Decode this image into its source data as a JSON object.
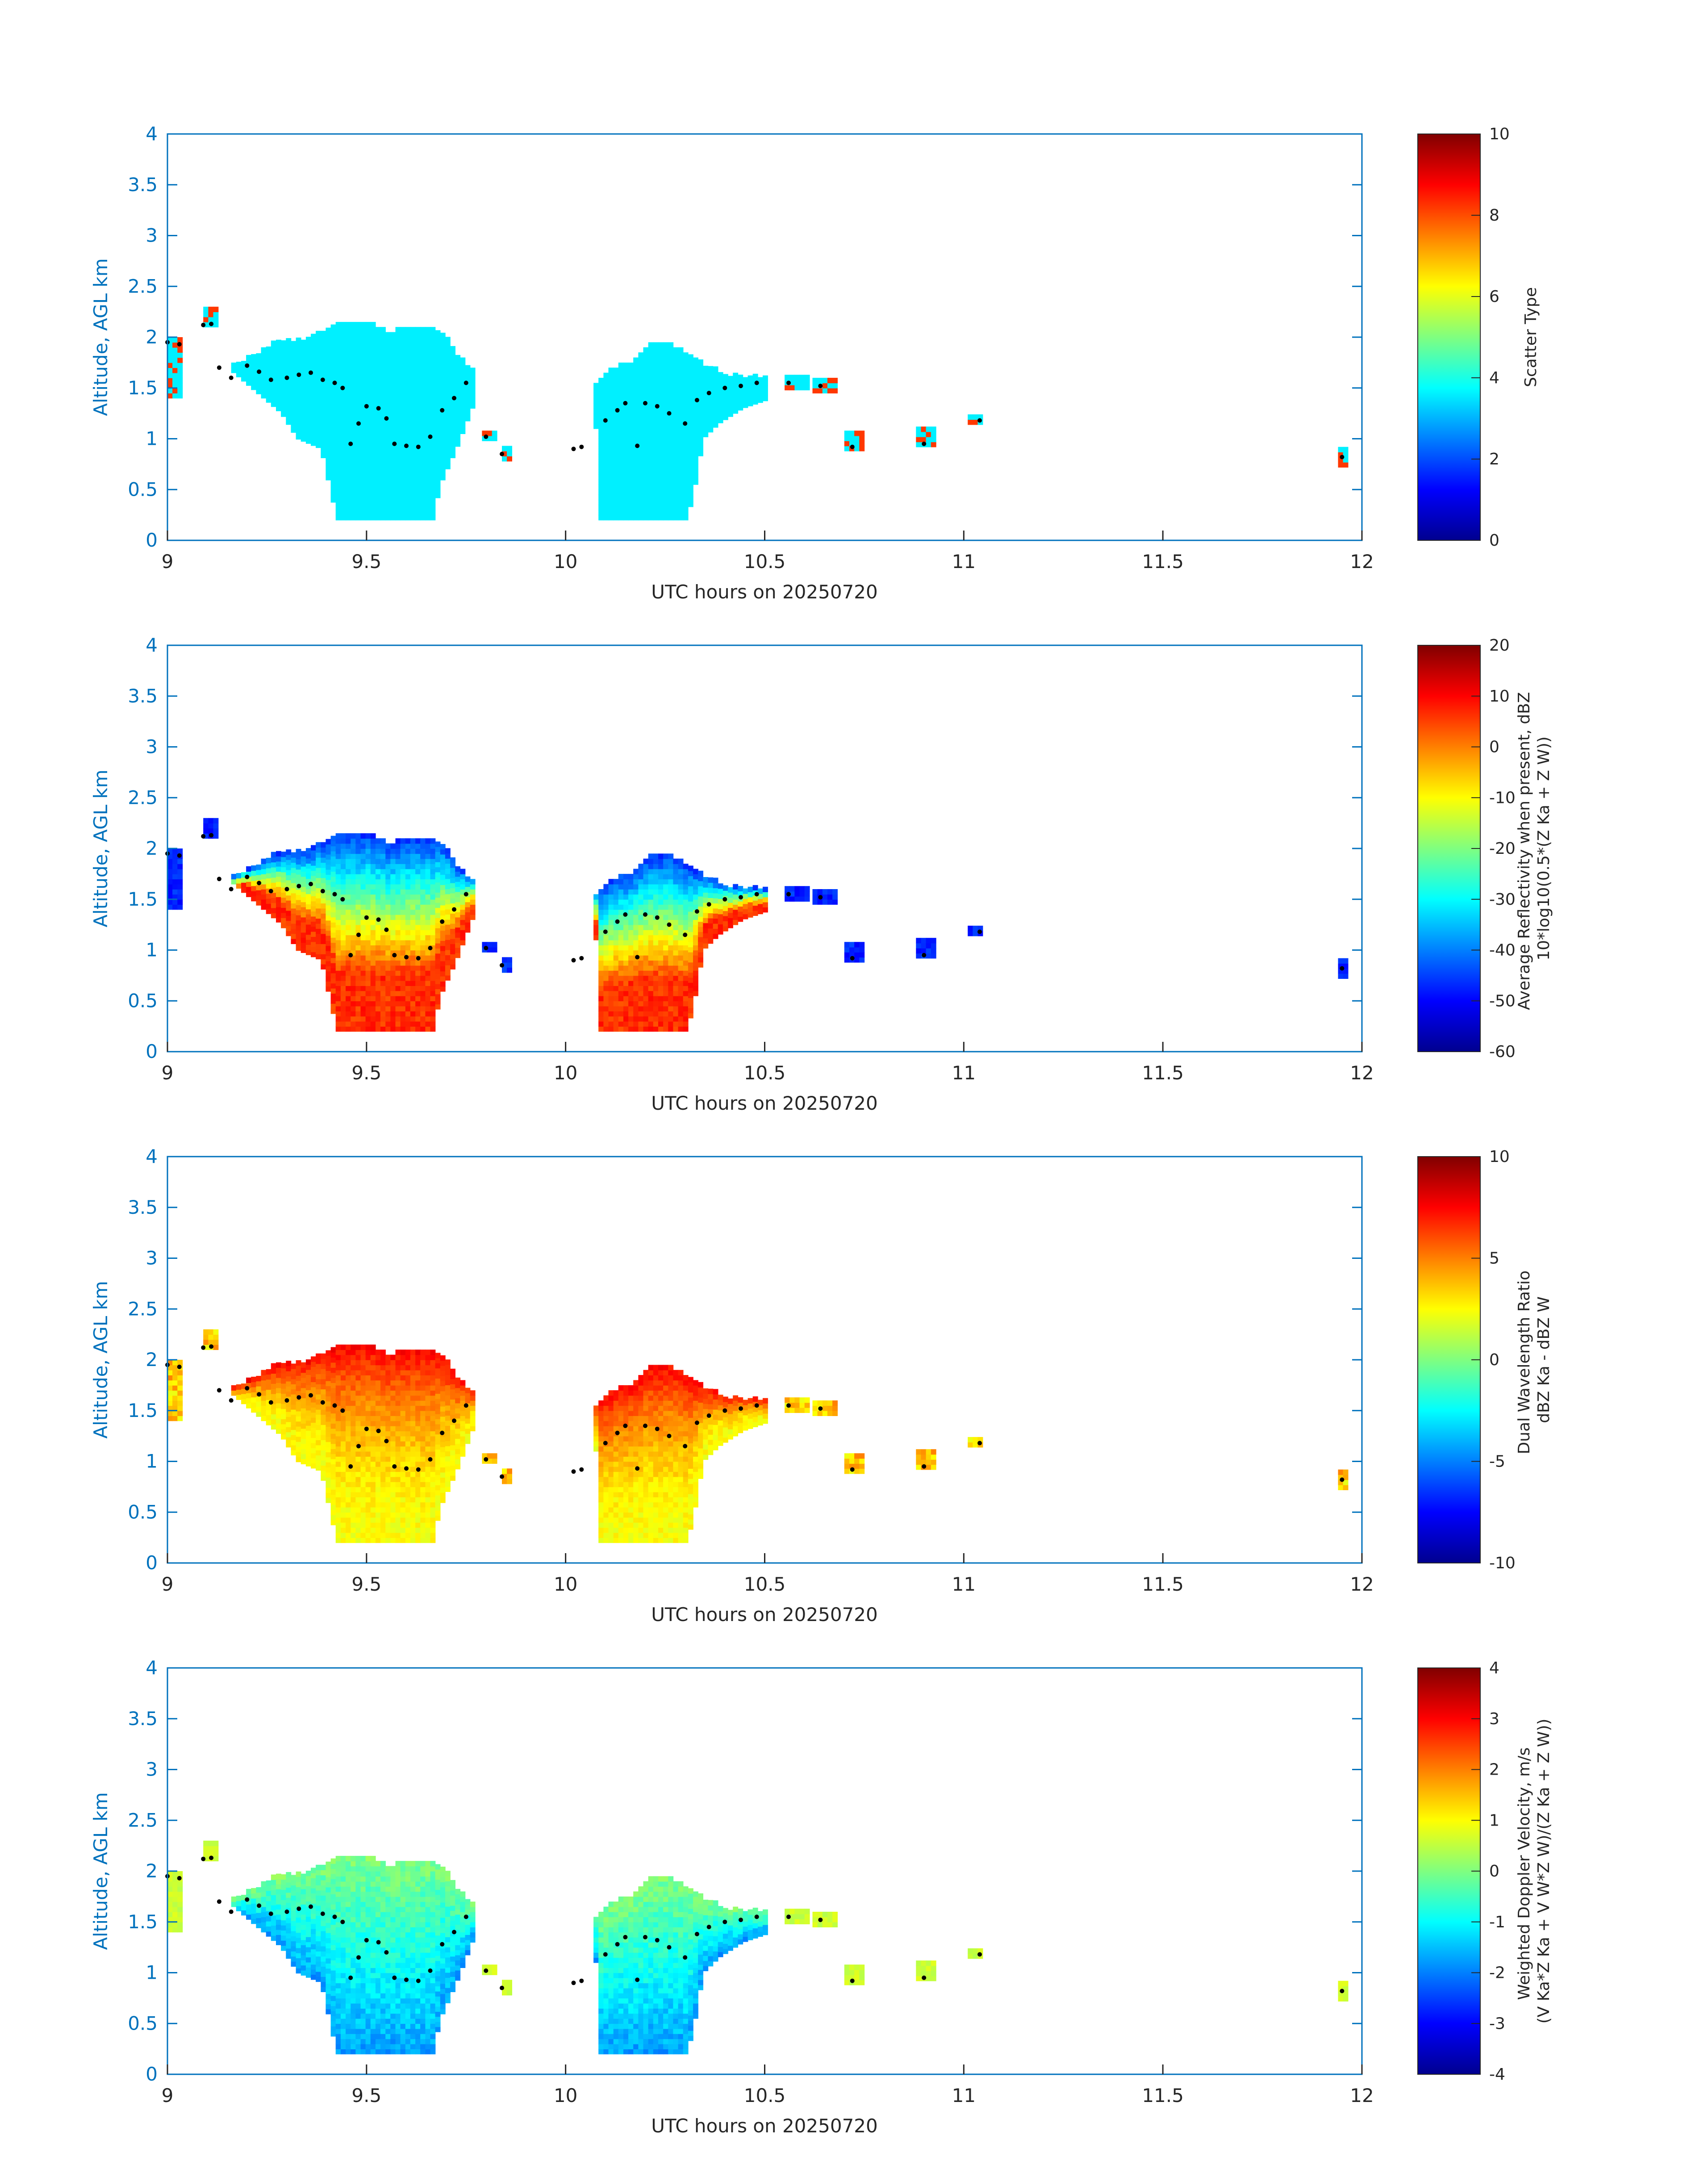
{
  "figure": {
    "common_xlabel": "UTC hours on 20250720",
    "common_ylabel": "Altitude, AGL km",
    "xlim": [
      9,
      12
    ],
    "ylim": [
      0,
      4
    ],
    "x_ticks": [
      "9",
      "9.5",
      "10",
      "10.5",
      "11",
      "11.5",
      "12"
    ],
    "y_ticks": [
      "0",
      "0.5",
      "1",
      "1.5",
      "2",
      "2.5",
      "3",
      "3.5",
      "4"
    ],
    "colormap": "jet"
  },
  "chart_data": [
    {
      "type": "heatmap",
      "xlabel": "UTC hours on 20250720",
      "ylabel": "Altitude, AGL km",
      "xlim": [
        9,
        12
      ],
      "ylim": [
        0,
        4
      ],
      "colorbar": {
        "label_lines": [
          "Scatter Type"
        ],
        "ticks": [
          "0",
          "2",
          "4",
          "6",
          "8",
          "10"
        ],
        "clim": [
          0,
          10
        ]
      },
      "field": "scatter_type",
      "note_values": {
        "cloud": 3.6,
        "precip": 8.2
      }
    },
    {
      "type": "heatmap",
      "xlabel": "UTC hours on 20250720",
      "ylabel": "Altitude, AGL km",
      "xlim": [
        9,
        12
      ],
      "ylim": [
        0,
        4
      ],
      "colorbar": {
        "label_lines": [
          "Average Reflectivity when present, dBZ",
          "10*log10(0.5*(Z Ka + Z W))"
        ],
        "ticks": [
          "-60",
          "-50",
          "-40",
          "-30",
          "-20",
          "-10",
          "0",
          "10",
          "20"
        ],
        "clim": [
          -60,
          20
        ]
      },
      "field": "reflectivity"
    },
    {
      "type": "heatmap",
      "xlabel": "UTC hours on 20250720",
      "ylabel": "Altitude, AGL km",
      "xlim": [
        9,
        12
      ],
      "ylim": [
        0,
        4
      ],
      "colorbar": {
        "label_lines": [
          "Dual Wavelength Ratio",
          "dBZ Ka - dBZ W"
        ],
        "ticks": [
          "-10",
          "-5",
          "0",
          "5",
          "10"
        ],
        "clim": [
          -10,
          10
        ]
      },
      "field": "dwr"
    },
    {
      "type": "heatmap",
      "xlabel": "UTC hours on 20250720",
      "ylabel": "Altitude, AGL km",
      "xlim": [
        9,
        12
      ],
      "ylim": [
        0,
        4
      ],
      "colorbar": {
        "label_lines": [
          "Weighted Doppler Velocity, m/s",
          "(V Ka*Z Ka + V W*Z W)/(Z Ka + Z W))"
        ],
        "ticks": [
          "-4",
          "-3",
          "-2",
          "-1",
          "0",
          "1",
          "2",
          "3",
          "4"
        ],
        "clim": [
          -4,
          4
        ]
      },
      "field": "velocity"
    }
  ],
  "clouds": {
    "masses": [
      {
        "x0": 9.16,
        "x1": 9.76,
        "top": [
          [
            9.16,
            1.72
          ],
          [
            9.2,
            1.78
          ],
          [
            9.26,
            1.92
          ],
          [
            9.3,
            1.95
          ],
          [
            9.35,
            1.96
          ],
          [
            9.38,
            2.04
          ],
          [
            9.42,
            2.1
          ],
          [
            9.5,
            2.12
          ],
          [
            9.55,
            2.04
          ],
          [
            9.6,
            2.07
          ],
          [
            9.68,
            2.06
          ],
          [
            9.72,
            1.82
          ],
          [
            9.76,
            1.68
          ]
        ],
        "base": [
          [
            9.16,
            1.65
          ],
          [
            9.22,
            1.45
          ],
          [
            9.28,
            1.25
          ],
          [
            9.32,
            1.0
          ],
          [
            9.38,
            0.9
          ],
          [
            9.42,
            0.2
          ],
          [
            9.56,
            0.2
          ],
          [
            9.6,
            0.2
          ],
          [
            9.66,
            0.2
          ],
          [
            9.68,
            0.55
          ],
          [
            9.72,
            0.9
          ],
          [
            9.76,
            1.3
          ]
        ]
      },
      {
        "x0": 10.07,
        "x1": 10.5,
        "top": [
          [
            10.07,
            1.55
          ],
          [
            10.12,
            1.7
          ],
          [
            10.16,
            1.75
          ],
          [
            10.2,
            1.9
          ],
          [
            10.26,
            1.92
          ],
          [
            10.3,
            1.82
          ],
          [
            10.34,
            1.72
          ],
          [
            10.4,
            1.62
          ],
          [
            10.46,
            1.6
          ],
          [
            10.5,
            1.58
          ]
        ],
        "base": [
          [
            10.07,
            1.1
          ],
          [
            10.08,
            0.2
          ],
          [
            10.3,
            0.2
          ],
          [
            10.32,
            0.55
          ],
          [
            10.34,
            1.0
          ],
          [
            10.38,
            1.15
          ],
          [
            10.44,
            1.3
          ],
          [
            10.5,
            1.38
          ]
        ]
      }
    ],
    "fragments": [
      [
        9.0,
        9.03,
        1.4,
        1.98
      ],
      [
        9.09,
        9.12,
        2.1,
        2.26
      ],
      [
        9.79,
        9.82,
        0.98,
        1.06
      ],
      [
        9.84,
        9.86,
        0.78,
        0.92
      ],
      [
        10.55,
        10.6,
        1.48,
        1.6
      ],
      [
        10.62,
        10.68,
        1.45,
        1.6
      ],
      [
        10.7,
        10.74,
        0.88,
        1.06
      ],
      [
        10.88,
        10.92,
        0.92,
        1.12
      ],
      [
        11.01,
        11.04,
        1.14,
        1.22
      ],
      [
        11.94,
        11.96,
        0.72,
        0.88
      ]
    ],
    "cloud_base_trace": [
      [
        9.0,
        1.95
      ],
      [
        9.03,
        1.93
      ],
      [
        9.09,
        2.12
      ],
      [
        9.11,
        2.13
      ],
      [
        9.13,
        1.7
      ],
      [
        9.16,
        1.6
      ],
      [
        9.2,
        1.72
      ],
      [
        9.23,
        1.66
      ],
      [
        9.26,
        1.58
      ],
      [
        9.3,
        1.6
      ],
      [
        9.33,
        1.63
      ],
      [
        9.36,
        1.65
      ],
      [
        9.39,
        1.58
      ],
      [
        9.42,
        1.55
      ],
      [
        9.44,
        1.5
      ],
      [
        9.46,
        0.95
      ],
      [
        9.48,
        1.15
      ],
      [
        9.5,
        1.32
      ],
      [
        9.53,
        1.3
      ],
      [
        9.55,
        1.2
      ],
      [
        9.57,
        0.95
      ],
      [
        9.6,
        0.93
      ],
      [
        9.63,
        0.92
      ],
      [
        9.66,
        1.02
      ],
      [
        9.69,
        1.28
      ],
      [
        9.72,
        1.4
      ],
      [
        9.75,
        1.55
      ],
      [
        9.8,
        1.02
      ],
      [
        9.84,
        0.85
      ],
      [
        10.02,
        0.9
      ],
      [
        10.04,
        0.92
      ],
      [
        10.1,
        1.18
      ],
      [
        10.13,
        1.28
      ],
      [
        10.15,
        1.35
      ],
      [
        10.18,
        0.93
      ],
      [
        10.2,
        1.35
      ],
      [
        10.23,
        1.32
      ],
      [
        10.26,
        1.25
      ],
      [
        10.3,
        1.15
      ],
      [
        10.33,
        1.38
      ],
      [
        10.36,
        1.45
      ],
      [
        10.4,
        1.5
      ],
      [
        10.44,
        1.52
      ],
      [
        10.48,
        1.55
      ],
      [
        10.56,
        1.55
      ],
      [
        10.64,
        1.52
      ],
      [
        10.72,
        0.92
      ],
      [
        10.9,
        0.95
      ],
      [
        11.04,
        1.18
      ],
      [
        11.95,
        0.82
      ]
    ]
  }
}
